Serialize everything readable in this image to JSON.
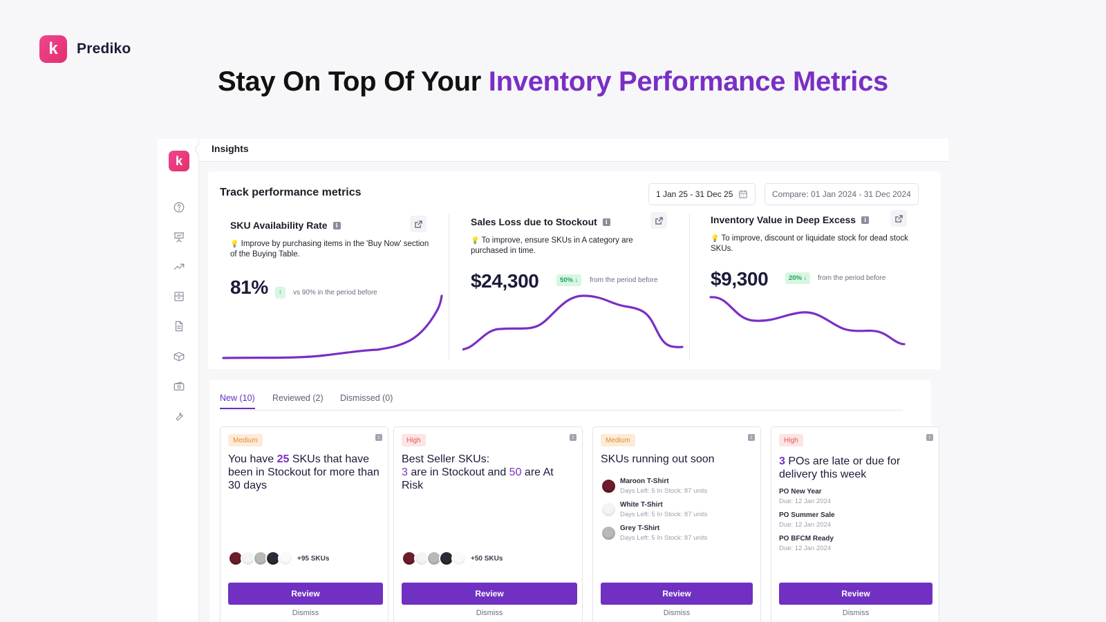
{
  "brand": {
    "logo_letter": "k",
    "name": "Prediko"
  },
  "headline": {
    "part1": "Stay On Top Of Your ",
    "part2": "Inventory Performance Metrics"
  },
  "app": {
    "logo_letter": "k",
    "page_title": "Insights",
    "sidebar_icons": [
      "help-icon",
      "presentation-icon",
      "trending-up-icon",
      "inventory-icon",
      "document-icon",
      "package-icon",
      "cash-icon",
      "wrench-icon"
    ]
  },
  "metrics": {
    "title": "Track performance metrics",
    "date_range": "1 Jan 25 - 31 Dec 25",
    "compare_range": "Compare: 01 Jan 2024 - 31 Dec 2024",
    "cards": [
      {
        "title": "SKU Availability Rate",
        "tip": "Improve by purchasing items in the 'Buy Now' section of the Buying Table.",
        "value": "81%",
        "badge": "↑",
        "note": "vs 90% in the period before"
      },
      {
        "title": "Sales Loss due to Stockout",
        "tip": "To improve, ensure SKUs in A category are purchased in time.",
        "value": "$24,300",
        "badge": "50% ↓",
        "note": "from the period before"
      },
      {
        "title": "Inventory Value in Deep Excess",
        "tip": "To improve, discount or liquidate stock for dead stock SKUs.",
        "value": "$9,300",
        "badge": "20% ↓",
        "note": "from the period before"
      }
    ]
  },
  "insights": {
    "tabs": [
      "New (10)",
      "Reviewed (2)",
      "Dismissed (0)"
    ],
    "cards": [
      {
        "priority": "Medium",
        "title_a": "You have ",
        "title_num": "25",
        "title_b": " SKUs that have been in Stockout for more than 30 days",
        "more": "+95 SKUs",
        "review": "Review",
        "dismiss": "Dismiss"
      },
      {
        "priority": "High",
        "title_a": "Best Seller SKUs:",
        "num1": "3",
        "mid": " are in Stockout and ",
        "num2": "50",
        "end": " are At Risk",
        "more": "+50 SKUs",
        "review": "Review",
        "dismiss": "Dismiss"
      },
      {
        "priority": "Medium",
        "title": "SKUs running out soon",
        "items": [
          {
            "name": "Maroon T-Shirt",
            "meta": "Days Left: 5 In Stock: 87 units"
          },
          {
            "name": "White T-Shirt",
            "meta": "Days Left: 5 In Stock: 87 units"
          },
          {
            "name": "Grey T-Shirt",
            "meta": "Days Left: 5 In Stock: 87 units"
          }
        ],
        "review": "Review",
        "dismiss": "Dismiss"
      },
      {
        "priority": "High",
        "title_num": "3",
        "title_b": " POs are late or due for delivery this week",
        "items": [
          {
            "name": "PO New Year",
            "due": "Due: 12 Jan 2024"
          },
          {
            "name": "PO Summer Sale",
            "due": "Due: 12 Jan 2024"
          },
          {
            "name": "PO BFCM Ready",
            "due": "Due: 12 Jan 2024"
          }
        ],
        "review": "Review",
        "dismiss": "Dismiss"
      }
    ]
  },
  "colors": {
    "accent": "#7a2fc4",
    "button": "#7030c2",
    "brand": "#e1306c"
  }
}
